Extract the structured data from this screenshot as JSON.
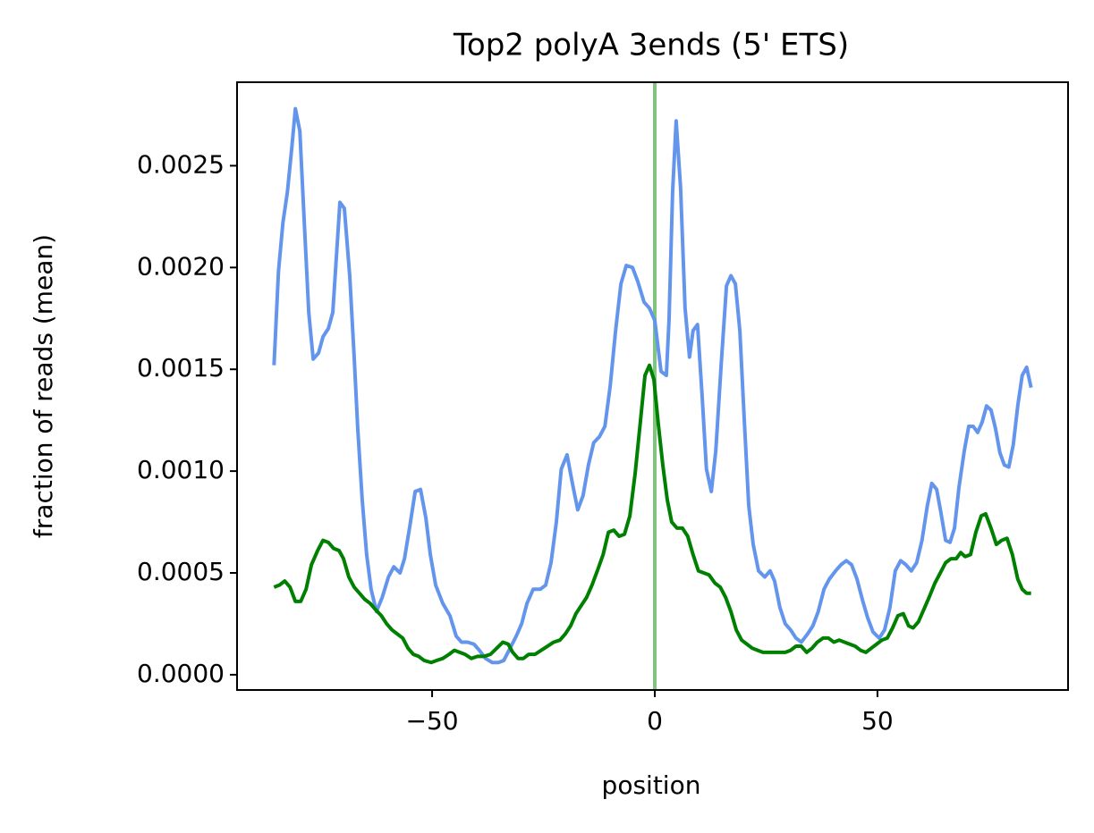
{
  "chart_data": {
    "type": "line",
    "title": "Top2 polyA 3ends (5' ETS)",
    "x_label": "position",
    "y_label": "fraction of reads (mean)",
    "xlim": [
      -93.8,
      92.8
    ],
    "ylim": [
      -7.5e-05,
      0.00291
    ],
    "xticks": [
      {
        "value": -50,
        "label": "−50"
      },
      0,
      50
    ],
    "yticks": [
      {
        "value": 0,
        "label": "0.0000"
      },
      {
        "value": 0.0005,
        "label": "0.0005"
      },
      {
        "value": 0.001,
        "label": "0.0010"
      },
      {
        "value": 0.0015,
        "label": "0.0015"
      },
      {
        "value": 0.002,
        "label": "0.0020"
      },
      {
        "value": 0.0025,
        "label": "0.0025"
      }
    ],
    "vline": {
      "x": 0,
      "color": "#80c480"
    },
    "series": [
      {
        "color": "#6495ed",
        "x": [
          -85.5,
          -84.5,
          -83.5,
          -82.5,
          -81.5,
          -80.7,
          -79.7,
          -78.7,
          -77.7,
          -76.7,
          -75.5,
          -74.5,
          -73.3,
          -72.3,
          -70.7,
          -69.7,
          -68.5,
          -67.5,
          -66.7,
          -65.7,
          -64.7,
          -63.7,
          -62.5,
          -61.2,
          -59.8,
          -58.6,
          -57.2,
          -56.2,
          -55.0,
          -53.8,
          -52.6,
          -51.4,
          -50.4,
          -49.2,
          -47.6,
          -46.0,
          -44.6,
          -43.4,
          -42.0,
          -40.6,
          -39.4,
          -38.0,
          -36.5,
          -35.1,
          -33.9,
          -32.5,
          -31.1,
          -29.9,
          -28.7,
          -27.3,
          -25.7,
          -24.5,
          -23.3,
          -22.1,
          -21.0,
          -19.7,
          -18.5,
          -17.3,
          -16.1,
          -14.9,
          -13.7,
          -12.4,
          -11.2,
          -10.0,
          -8.8,
          -7.6,
          -6.4,
          -5.0,
          -3.8,
          -2.4,
          -1.2,
          0,
          1.4,
          2.6,
          3.2,
          4.0,
          4.8,
          5.8,
          6.8,
          7.8,
          8.6,
          9.6,
          10.6,
          11.6,
          12.7,
          13.7,
          14.9,
          16.1,
          17.1,
          18.1,
          19.1,
          20.1,
          21.1,
          22.1,
          23.3,
          24.7,
          25.9,
          26.9,
          28.1,
          29.3,
          30.5,
          31.7,
          32.9,
          34.3,
          35.5,
          36.7,
          38.0,
          39.2,
          40.6,
          41.8,
          43.0,
          44.2,
          45.4,
          46.6,
          47.8,
          49.0,
          50.4,
          51.6,
          52.8,
          54.0,
          55.2,
          56.4,
          57.6,
          58.8,
          60.0,
          61.2,
          62.2,
          63.3,
          64.3,
          65.3,
          66.3,
          67.3,
          68.3,
          69.5,
          70.5,
          71.5,
          72.5,
          73.5,
          74.5,
          75.5,
          76.5,
          77.5,
          78.5,
          79.5,
          80.5,
          81.5,
          82.5,
          83.5,
          84.5
        ],
        "values": [
          0.00152,
          0.00198,
          0.00222,
          0.00237,
          0.00259,
          0.00278,
          0.00267,
          0.00222,
          0.00178,
          0.00155,
          0.00158,
          0.00166,
          0.0017,
          0.00178,
          0.00232,
          0.00229,
          0.00196,
          0.00156,
          0.00121,
          0.00086,
          0.00059,
          0.00042,
          0.00031,
          0.00038,
          0.00048,
          0.00053,
          0.0005,
          0.00057,
          0.00073,
          0.0009,
          0.00091,
          0.00077,
          0.00059,
          0.00044,
          0.00035,
          0.00029,
          0.00019,
          0.00016,
          0.00016,
          0.00015,
          0.00012,
          8e-05,
          6e-05,
          6e-05,
          7e-05,
          0.00013,
          0.00019,
          0.00025,
          0.00035,
          0.00042,
          0.00042,
          0.00044,
          0.00055,
          0.00075,
          0.00101,
          0.00108,
          0.00094,
          0.00081,
          0.00088,
          0.00103,
          0.00114,
          0.00117,
          0.00122,
          0.00142,
          0.00169,
          0.00192,
          0.00201,
          0.002,
          0.00193,
          0.00183,
          0.0018,
          0.00174,
          0.00149,
          0.00147,
          0.00174,
          0.00237,
          0.00272,
          0.00239,
          0.0018,
          0.00156,
          0.00169,
          0.00172,
          0.00138,
          0.00101,
          0.0009,
          0.0011,
          0.00152,
          0.00191,
          0.00196,
          0.00192,
          0.00169,
          0.00125,
          0.00083,
          0.00064,
          0.00051,
          0.00048,
          0.00051,
          0.00046,
          0.00033,
          0.00025,
          0.00022,
          0.00018,
          0.00016,
          0.0002,
          0.00024,
          0.00031,
          0.00042,
          0.00047,
          0.00051,
          0.00054,
          0.00056,
          0.00054,
          0.00047,
          0.00037,
          0.00028,
          0.00021,
          0.00018,
          0.00022,
          0.00033,
          0.00051,
          0.00056,
          0.00054,
          0.00051,
          0.00055,
          0.00066,
          0.00083,
          0.00094,
          0.00091,
          0.00079,
          0.00066,
          0.00065,
          0.00072,
          0.00092,
          0.0011,
          0.00122,
          0.00122,
          0.00119,
          0.00124,
          0.00132,
          0.0013,
          0.00121,
          0.00109,
          0.00103,
          0.00102,
          0.00113,
          0.00132,
          0.00147,
          0.00151,
          0.00141
        ]
      },
      {
        "color": "#008000",
        "x": [
          -85.5,
          -84.3,
          -83.1,
          -81.9,
          -80.7,
          -79.5,
          -78.3,
          -77.1,
          -75.7,
          -74.5,
          -73.3,
          -72.1,
          -70.9,
          -69.9,
          -68.7,
          -67.5,
          -66.3,
          -65.1,
          -63.9,
          -62.7,
          -61.4,
          -60.2,
          -59.0,
          -57.8,
          -56.6,
          -55.4,
          -54.2,
          -53.0,
          -51.8,
          -50.2,
          -49.0,
          -47.6,
          -46.2,
          -45.0,
          -43.8,
          -42.6,
          -41.2,
          -39.8,
          -38.4,
          -36.9,
          -35.5,
          -34.1,
          -32.9,
          -31.9,
          -30.7,
          -29.5,
          -28.3,
          -26.9,
          -25.5,
          -24.1,
          -22.7,
          -21.3,
          -20.1,
          -18.9,
          -17.7,
          -16.5,
          -15.3,
          -14.1,
          -12.9,
          -11.6,
          -10.4,
          -9.2,
          -8.0,
          -6.8,
          -5.6,
          -4.4,
          -3.2,
          -2.2,
          -1.2,
          -0.2,
          0.8,
          1.8,
          2.8,
          3.8,
          5.0,
          6.2,
          7.4,
          8.6,
          9.8,
          11.0,
          12.2,
          13.5,
          14.7,
          15.9,
          17.1,
          18.3,
          19.5,
          20.7,
          21.9,
          23.1,
          24.3,
          25.5,
          26.9,
          28.1,
          29.3,
          30.5,
          31.7,
          32.9,
          34.1,
          35.3,
          36.5,
          37.8,
          39.0,
          40.2,
          41.4,
          42.6,
          43.8,
          45.0,
          46.2,
          47.4,
          48.6,
          49.8,
          51.0,
          52.2,
          53.4,
          54.6,
          55.8,
          57.0,
          58.0,
          59.2,
          60.4,
          61.6,
          62.9,
          64.1,
          65.3,
          66.5,
          67.7,
          68.7,
          69.7,
          70.9,
          72.1,
          73.3,
          74.3,
          75.5,
          76.7,
          77.9,
          79.1,
          80.3,
          81.5,
          82.5,
          83.5,
          84.5
        ],
        "values": [
          0.00043,
          0.00044,
          0.00046,
          0.00043,
          0.00036,
          0.00036,
          0.00042,
          0.00054,
          0.00061,
          0.00066,
          0.00065,
          0.00062,
          0.00061,
          0.00057,
          0.00048,
          0.00043,
          0.0004,
          0.00037,
          0.00035,
          0.00032,
          0.00029,
          0.00025,
          0.00022,
          0.0002,
          0.00018,
          0.00013,
          0.0001,
          9e-05,
          7e-05,
          6e-05,
          7e-05,
          8e-05,
          0.0001,
          0.00012,
          0.00011,
          0.0001,
          8e-05,
          9e-05,
          9e-05,
          0.0001,
          0.00013,
          0.00016,
          0.00015,
          0.00011,
          8e-05,
          8e-05,
          0.0001,
          0.0001,
          0.00012,
          0.00014,
          0.00016,
          0.00017,
          0.0002,
          0.00024,
          0.0003,
          0.00034,
          0.00038,
          0.00044,
          0.00051,
          0.00059,
          0.0007,
          0.00071,
          0.00068,
          0.00069,
          0.00078,
          0.00099,
          0.00125,
          0.00147,
          0.00152,
          0.00145,
          0.00123,
          0.00103,
          0.00086,
          0.00075,
          0.00072,
          0.00072,
          0.00068,
          0.00059,
          0.00051,
          0.0005,
          0.00049,
          0.00045,
          0.00043,
          0.00038,
          0.00031,
          0.00022,
          0.00017,
          0.00015,
          0.00013,
          0.00012,
          0.00011,
          0.00011,
          0.00011,
          0.00011,
          0.00011,
          0.00012,
          0.00014,
          0.00014,
          0.00011,
          0.00013,
          0.00016,
          0.00018,
          0.00018,
          0.00016,
          0.00017,
          0.00016,
          0.00015,
          0.00014,
          0.00012,
          0.00011,
          0.00013,
          0.00015,
          0.00017,
          0.00018,
          0.00023,
          0.00029,
          0.0003,
          0.00024,
          0.00023,
          0.00026,
          0.00032,
          0.00038,
          0.00045,
          0.0005,
          0.00055,
          0.00057,
          0.00057,
          0.0006,
          0.00058,
          0.00059,
          0.0007,
          0.00078,
          0.00079,
          0.00072,
          0.00064,
          0.00066,
          0.00067,
          0.00059,
          0.00047,
          0.00042,
          0.0004,
          0.0004
        ]
      }
    ]
  }
}
